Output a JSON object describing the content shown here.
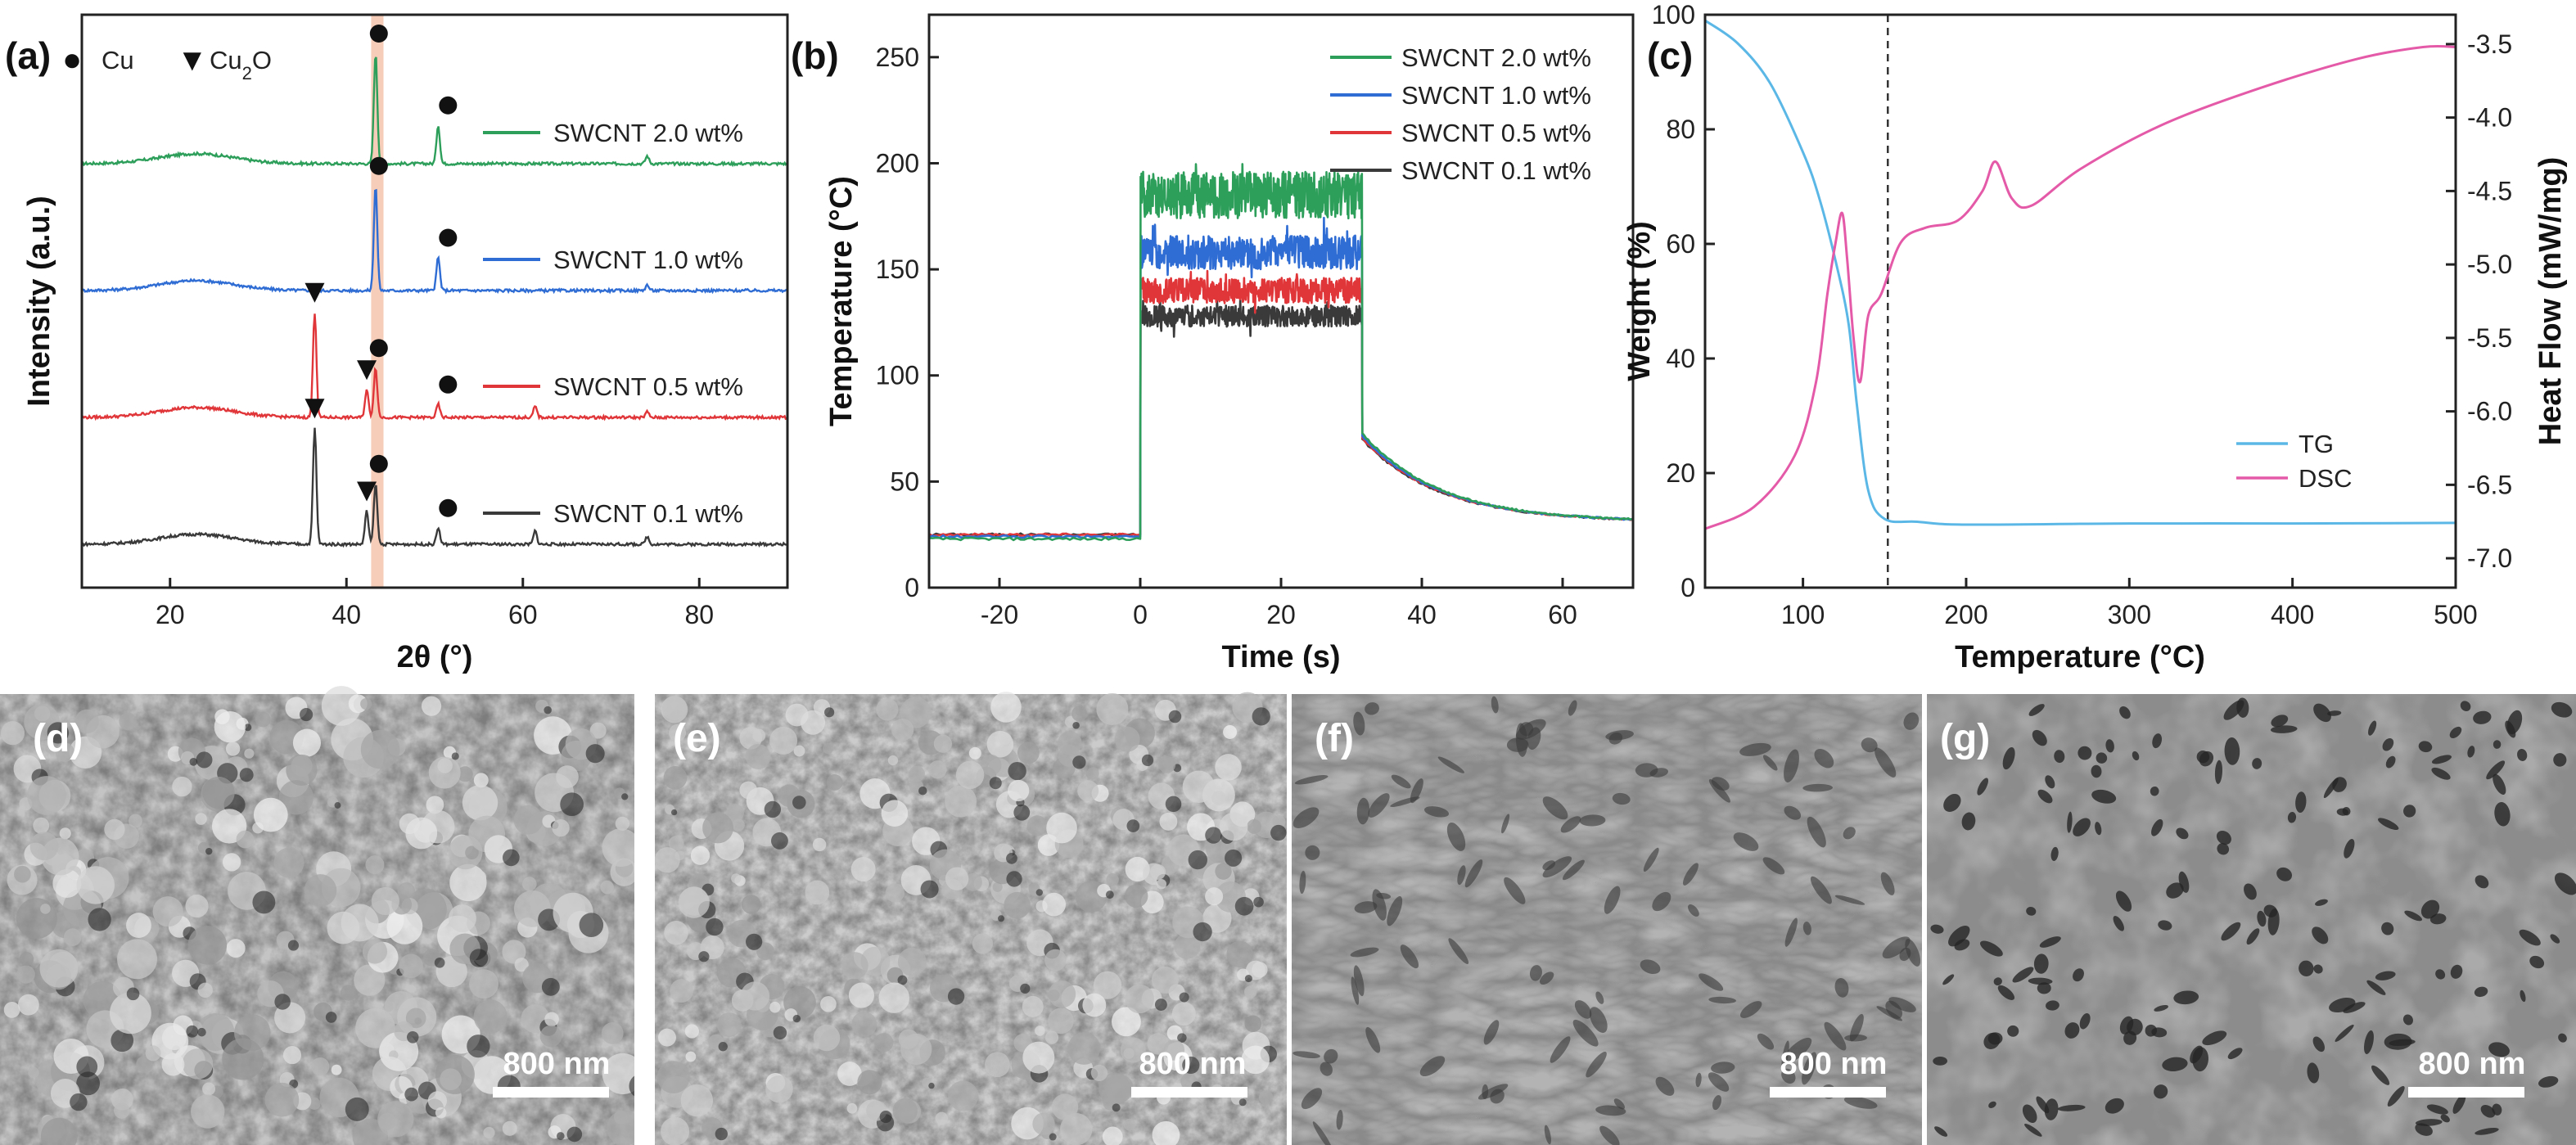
{
  "panels": {
    "a": "(a)",
    "b": "(b)",
    "c": "(c)",
    "d": "(d)",
    "e": "(e)",
    "f": "(f)",
    "g": "(g)"
  },
  "colors": {
    "green": "#2e9e5b",
    "blue": "#2f6cd3",
    "red": "#e0363a",
    "black": "#3a3a3a",
    "tg": "#5bb8e6",
    "dsc": "#e45aa8",
    "highlight": "#f6cdb8"
  },
  "chart_data": [
    {
      "id": "xrd",
      "type": "line",
      "title": "",
      "xlabel": "2θ (°)",
      "ylabel": "Intensity (a.u.)",
      "xlim": [
        10,
        90
      ],
      "xticks": [
        20,
        40,
        60,
        80
      ],
      "legend_markers": {
        "cu": "Cu",
        "cu2o": "Cu2O"
      },
      "highlight_band": [
        42.8,
        44.2
      ],
      "series": [
        {
          "name": "SWCNT 2.0 wt%",
          "color": "#2e9e5b",
          "offset": 3,
          "peaks": [
            {
              "x": 43.3,
              "h": 1.0,
              "marker": "cu"
            },
            {
              "x": 50.4,
              "h": 0.35,
              "marker": "cu"
            },
            {
              "x": 74.1,
              "h": 0.07
            }
          ]
        },
        {
          "name": "SWCNT 1.0 wt%",
          "color": "#2f6cd3",
          "offset": 2,
          "peaks": [
            {
              "x": 43.3,
              "h": 0.95,
              "marker": "cu"
            },
            {
              "x": 50.4,
              "h": 0.3,
              "marker": "cu"
            },
            {
              "x": 74.1,
              "h": 0.05
            }
          ]
        },
        {
          "name": "SWCNT 0.5 wt%",
          "color": "#e0363a",
          "offset": 1,
          "peaks": [
            {
              "x": 36.4,
              "h": 0.95,
              "marker": "cu2o"
            },
            {
              "x": 42.3,
              "h": 0.25,
              "marker": "cu2o"
            },
            {
              "x": 43.3,
              "h": 0.45,
              "marker": "cu"
            },
            {
              "x": 50.4,
              "h": 0.12,
              "marker": "cu"
            },
            {
              "x": 61.4,
              "h": 0.1
            },
            {
              "x": 74.1,
              "h": 0.05
            }
          ]
        },
        {
          "name": "SWCNT 0.1 wt%",
          "color": "#3a3a3a",
          "offset": 0,
          "peaks": [
            {
              "x": 36.4,
              "h": 1.05,
              "marker": "cu2o"
            },
            {
              "x": 42.3,
              "h": 0.3,
              "marker": "cu2o"
            },
            {
              "x": 43.3,
              "h": 0.55,
              "marker": "cu"
            },
            {
              "x": 50.4,
              "h": 0.15,
              "marker": "cu"
            },
            {
              "x": 61.4,
              "h": 0.12
            },
            {
              "x": 74.1,
              "h": 0.07
            }
          ]
        }
      ]
    },
    {
      "id": "temperature",
      "type": "line",
      "xlabel": "Time (s)",
      "ylabel": "Temperature (°C)",
      "xlim": [
        -30,
        70
      ],
      "ylim": [
        0,
        270
      ],
      "xticks": [
        -20,
        0,
        20,
        40,
        60
      ],
      "yticks": [
        0,
        50,
        100,
        150,
        200,
        250
      ],
      "series": [
        {
          "name": "SWCNT 2.0 wt%",
          "color": "#2e9e5b",
          "baseline": 23,
          "plateau": 185,
          "noise": 11,
          "end": 31.5
        },
        {
          "name": "SWCNT 1.0 wt%",
          "color": "#2f6cd3",
          "baseline": 24,
          "plateau": 158,
          "noise": 8,
          "end": 31.5
        },
        {
          "name": "SWCNT 0.5 wt%",
          "color": "#e0363a",
          "baseline": 25,
          "plateau": 140,
          "noise": 6,
          "end": 31.5
        },
        {
          "name": "SWCNT 0.1 wt%",
          "color": "#3a3a3a",
          "baseline": 25,
          "plateau": 128,
          "noise": 5,
          "end": 31.5
        }
      ],
      "final_value": 31
    },
    {
      "id": "tga_dsc",
      "type": "line",
      "xlabel": "Temperature (°C)",
      "ylabel": "Weight (%)",
      "ylabel_right": "Heat Flow (mW/mg)",
      "xlim": [
        40,
        500
      ],
      "ylim": [
        0,
        100
      ],
      "ylim_right": [
        -7.2,
        -3.3
      ],
      "xticks": [
        100,
        200,
        300,
        400,
        500
      ],
      "yticks": [
        0,
        20,
        40,
        60,
        80,
        100
      ],
      "yticks_right": [
        "-3.5",
        "-4.0",
        "-4.5",
        "-5.0",
        "-5.5",
        "-6.0",
        "-6.5",
        "-7.0"
      ],
      "dashed_x": 152,
      "series": [
        {
          "name": "TG",
          "color": "#5bb8e6",
          "x": [
            40,
            60,
            80,
            100,
            110,
            120,
            128,
            133,
            140,
            150,
            170,
            200,
            300,
            400,
            500
          ],
          "y": [
            99,
            95,
            88,
            76,
            68,
            57,
            46,
            32,
            17,
            12,
            11.5,
            11,
            11.2,
            11.2,
            11.3
          ]
        },
        {
          "name": "DSC",
          "color": "#e45aa8",
          "x": [
            40,
            70,
            95,
            108,
            115,
            120,
            124,
            127,
            131,
            135,
            140,
            148,
            160,
            175,
            195,
            210,
            218,
            228,
            240,
            270,
            320,
            380,
            440,
            480,
            500
          ],
          "y": [
            -6.8,
            -6.65,
            -6.3,
            -5.8,
            -5.2,
            -4.85,
            -4.65,
            -4.95,
            -5.5,
            -5.8,
            -5.35,
            -5.2,
            -4.85,
            -4.75,
            -4.7,
            -4.5,
            -4.3,
            -4.55,
            -4.6,
            -4.35,
            -4.05,
            -3.8,
            -3.6,
            -3.52,
            -3.52
          ]
        }
      ]
    }
  ],
  "sem": [
    {
      "label": "(d)",
      "scale": "800 nm",
      "style": "particles"
    },
    {
      "label": "(e)",
      "scale": "800 nm",
      "style": "particles"
    },
    {
      "label": "(f)",
      "scale": "800 nm",
      "style": "fused"
    },
    {
      "label": "(g)",
      "scale": "800 nm",
      "style": "network"
    }
  ]
}
